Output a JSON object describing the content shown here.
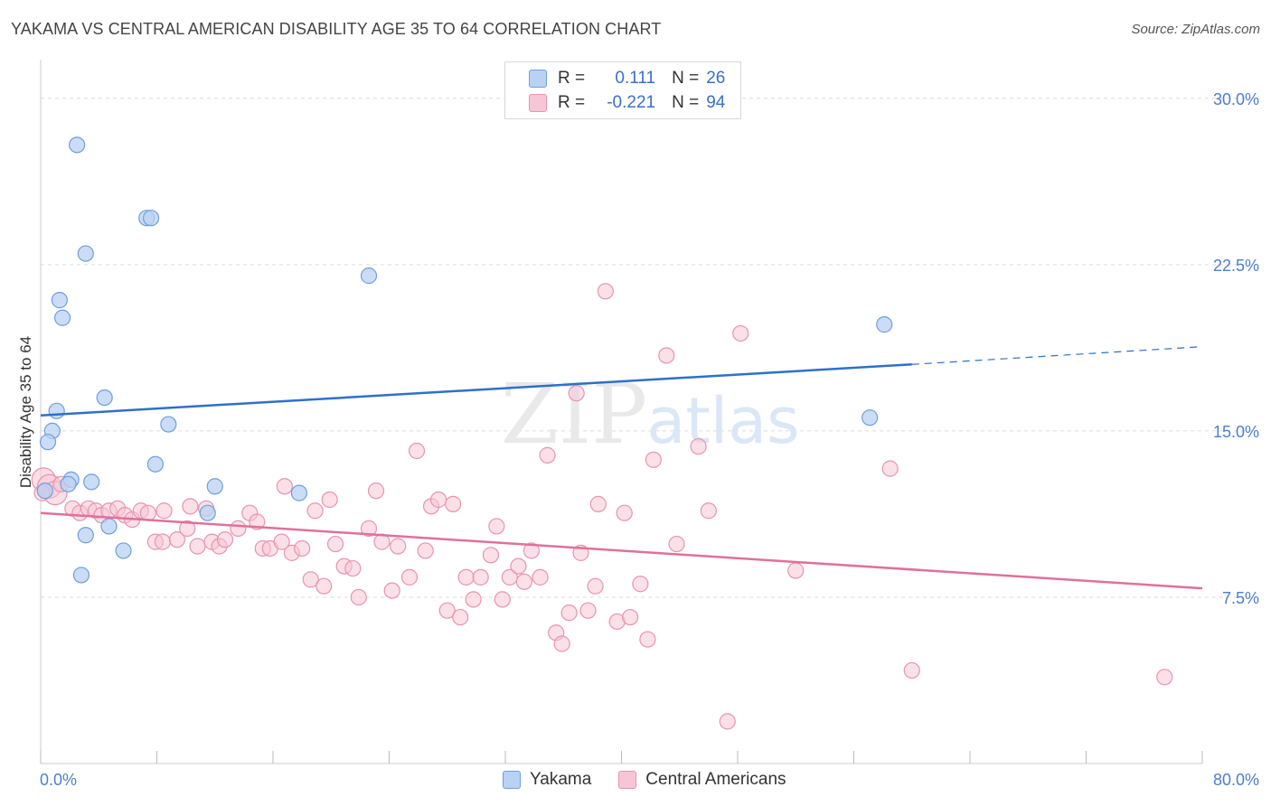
{
  "title": "YAKAMA VS CENTRAL AMERICAN DISABILITY AGE 35 TO 64 CORRELATION CHART",
  "source": "Source: ZipAtlas.com",
  "watermark": {
    "zip": "ZIP",
    "atlas": "atlas"
  },
  "legend": {
    "rows": [
      {
        "r_label": "R =",
        "r_value": "0.111",
        "n_label": "N =",
        "n_value": "26"
      },
      {
        "r_label": "R =",
        "r_value": "-0.221",
        "n_label": "N =",
        "n_value": "94"
      }
    ]
  },
  "bottom_legend": [
    "Yakama",
    "Central Americans"
  ],
  "colors": {
    "yakama_fill": "#b9d2f3",
    "yakama_stroke": "#6f9ee0",
    "yakama_line": "#2f6fcb",
    "central_fill": "#f7c6d6",
    "central_stroke": "#e993b0",
    "central_line": "#e0709a",
    "grid": "#dcdcdc",
    "tick_text": "#4a7fd0"
  },
  "chart_data": {
    "type": "scatter",
    "title": "YAKAMA VS CENTRAL AMERICAN DISABILITY AGE 35 TO 64 CORRELATION CHART",
    "xlabel": "",
    "ylabel": "Disability Age 35 to 64",
    "xlim": [
      0,
      80
    ],
    "ylim": [
      0,
      31.5
    ],
    "x_tick_labels": [
      "0.0%",
      "80.0%"
    ],
    "y_ticks": [
      7.5,
      15.0,
      22.5,
      30.0
    ],
    "y_tick_labels": [
      "7.5%",
      "15.0%",
      "22.5%",
      "30.0%"
    ],
    "grid": true,
    "series": [
      {
        "name": "Yakama",
        "R": 0.111,
        "N": 26,
        "trend": {
          "x0": 0,
          "y0": 15.7,
          "x1": 60,
          "y1": 18.0,
          "dashed_to_x": 80,
          "dashed_to_y": 18.8
        },
        "points": [
          [
            2.5,
            27.9
          ],
          [
            7.3,
            24.6
          ],
          [
            7.6,
            24.6
          ],
          [
            3.1,
            23.0
          ],
          [
            1.3,
            20.9
          ],
          [
            1.5,
            20.1
          ],
          [
            22.6,
            22.0
          ],
          [
            58.1,
            19.8
          ],
          [
            4.4,
            16.5
          ],
          [
            1.1,
            15.9
          ],
          [
            0.8,
            15.0
          ],
          [
            8.8,
            15.3
          ],
          [
            0.5,
            14.5
          ],
          [
            57.1,
            15.6
          ],
          [
            7.9,
            13.5
          ],
          [
            2.1,
            12.8
          ],
          [
            3.5,
            12.7
          ],
          [
            1.9,
            12.6
          ],
          [
            12.0,
            12.5
          ],
          [
            17.8,
            12.2
          ],
          [
            0.3,
            12.3
          ],
          [
            11.5,
            11.3
          ],
          [
            4.7,
            10.7
          ],
          [
            3.1,
            10.3
          ],
          [
            5.7,
            9.6
          ],
          [
            2.8,
            8.5
          ]
        ]
      },
      {
        "name": "Central Americans",
        "R": -0.221,
        "N": 94,
        "trend": {
          "x0": 0,
          "y0": 11.3,
          "x1": 80,
          "y1": 7.9
        },
        "points": [
          [
            0.2,
            12.8
          ],
          [
            0.6,
            12.5
          ],
          [
            1.0,
            12.2
          ],
          [
            1.4,
            12.6
          ],
          [
            2.2,
            11.5
          ],
          [
            2.7,
            11.3
          ],
          [
            3.3,
            11.5
          ],
          [
            3.8,
            11.4
          ],
          [
            4.2,
            11.2
          ],
          [
            4.7,
            11.4
          ],
          [
            5.3,
            11.5
          ],
          [
            5.8,
            11.2
          ],
          [
            6.3,
            11.0
          ],
          [
            6.9,
            11.4
          ],
          [
            7.4,
            11.3
          ],
          [
            8.5,
            11.4
          ],
          [
            10.3,
            11.6
          ],
          [
            11.4,
            11.5
          ],
          [
            7.9,
            10.0
          ],
          [
            8.4,
            10.0
          ],
          [
            9.4,
            10.1
          ],
          [
            10.1,
            10.6
          ],
          [
            10.8,
            9.8
          ],
          [
            11.8,
            10.0
          ],
          [
            12.3,
            9.8
          ],
          [
            12.7,
            10.1
          ],
          [
            13.6,
            10.6
          ],
          [
            14.4,
            11.3
          ],
          [
            14.9,
            10.9
          ],
          [
            15.3,
            9.7
          ],
          [
            15.8,
            9.7
          ],
          [
            16.6,
            10.0
          ],
          [
            17.3,
            9.5
          ],
          [
            18.0,
            9.7
          ],
          [
            16.8,
            12.5
          ],
          [
            18.9,
            11.4
          ],
          [
            19.9,
            11.9
          ],
          [
            18.6,
            8.3
          ],
          [
            19.5,
            8.0
          ],
          [
            20.3,
            9.9
          ],
          [
            20.9,
            8.9
          ],
          [
            21.5,
            8.8
          ],
          [
            21.9,
            7.5
          ],
          [
            22.6,
            10.6
          ],
          [
            23.1,
            12.3
          ],
          [
            23.5,
            10.0
          ],
          [
            24.2,
            7.8
          ],
          [
            24.6,
            9.8
          ],
          [
            25.4,
            8.4
          ],
          [
            25.9,
            14.1
          ],
          [
            26.5,
            9.6
          ],
          [
            26.9,
            11.6
          ],
          [
            27.4,
            11.9
          ],
          [
            28.0,
            6.9
          ],
          [
            28.4,
            11.7
          ],
          [
            28.9,
            6.6
          ],
          [
            29.3,
            8.4
          ],
          [
            29.8,
            7.4
          ],
          [
            30.3,
            8.4
          ],
          [
            31.0,
            9.4
          ],
          [
            31.4,
            10.7
          ],
          [
            31.8,
            7.4
          ],
          [
            32.3,
            8.4
          ],
          [
            32.9,
            8.9
          ],
          [
            33.3,
            8.2
          ],
          [
            33.8,
            9.6
          ],
          [
            34.4,
            8.4
          ],
          [
            34.9,
            13.9
          ],
          [
            35.5,
            5.9
          ],
          [
            35.9,
            5.4
          ],
          [
            36.4,
            6.8
          ],
          [
            36.9,
            16.7
          ],
          [
            37.2,
            9.5
          ],
          [
            37.7,
            6.9
          ],
          [
            38.4,
            11.7
          ],
          [
            38.9,
            21.3
          ],
          [
            38.2,
            8.0
          ],
          [
            39.7,
            6.4
          ],
          [
            40.2,
            11.3
          ],
          [
            40.6,
            6.6
          ],
          [
            41.3,
            8.1
          ],
          [
            41.8,
            5.6
          ],
          [
            42.2,
            13.7
          ],
          [
            43.1,
            18.4
          ],
          [
            43.8,
            9.9
          ],
          [
            45.3,
            14.3
          ],
          [
            46.0,
            11.4
          ],
          [
            47.3,
            1.9
          ],
          [
            48.2,
            19.4
          ],
          [
            52.0,
            8.7
          ],
          [
            58.5,
            13.3
          ],
          [
            60.0,
            4.2
          ],
          [
            77.4,
            3.9
          ],
          [
            0.1,
            12.2
          ]
        ]
      }
    ]
  }
}
